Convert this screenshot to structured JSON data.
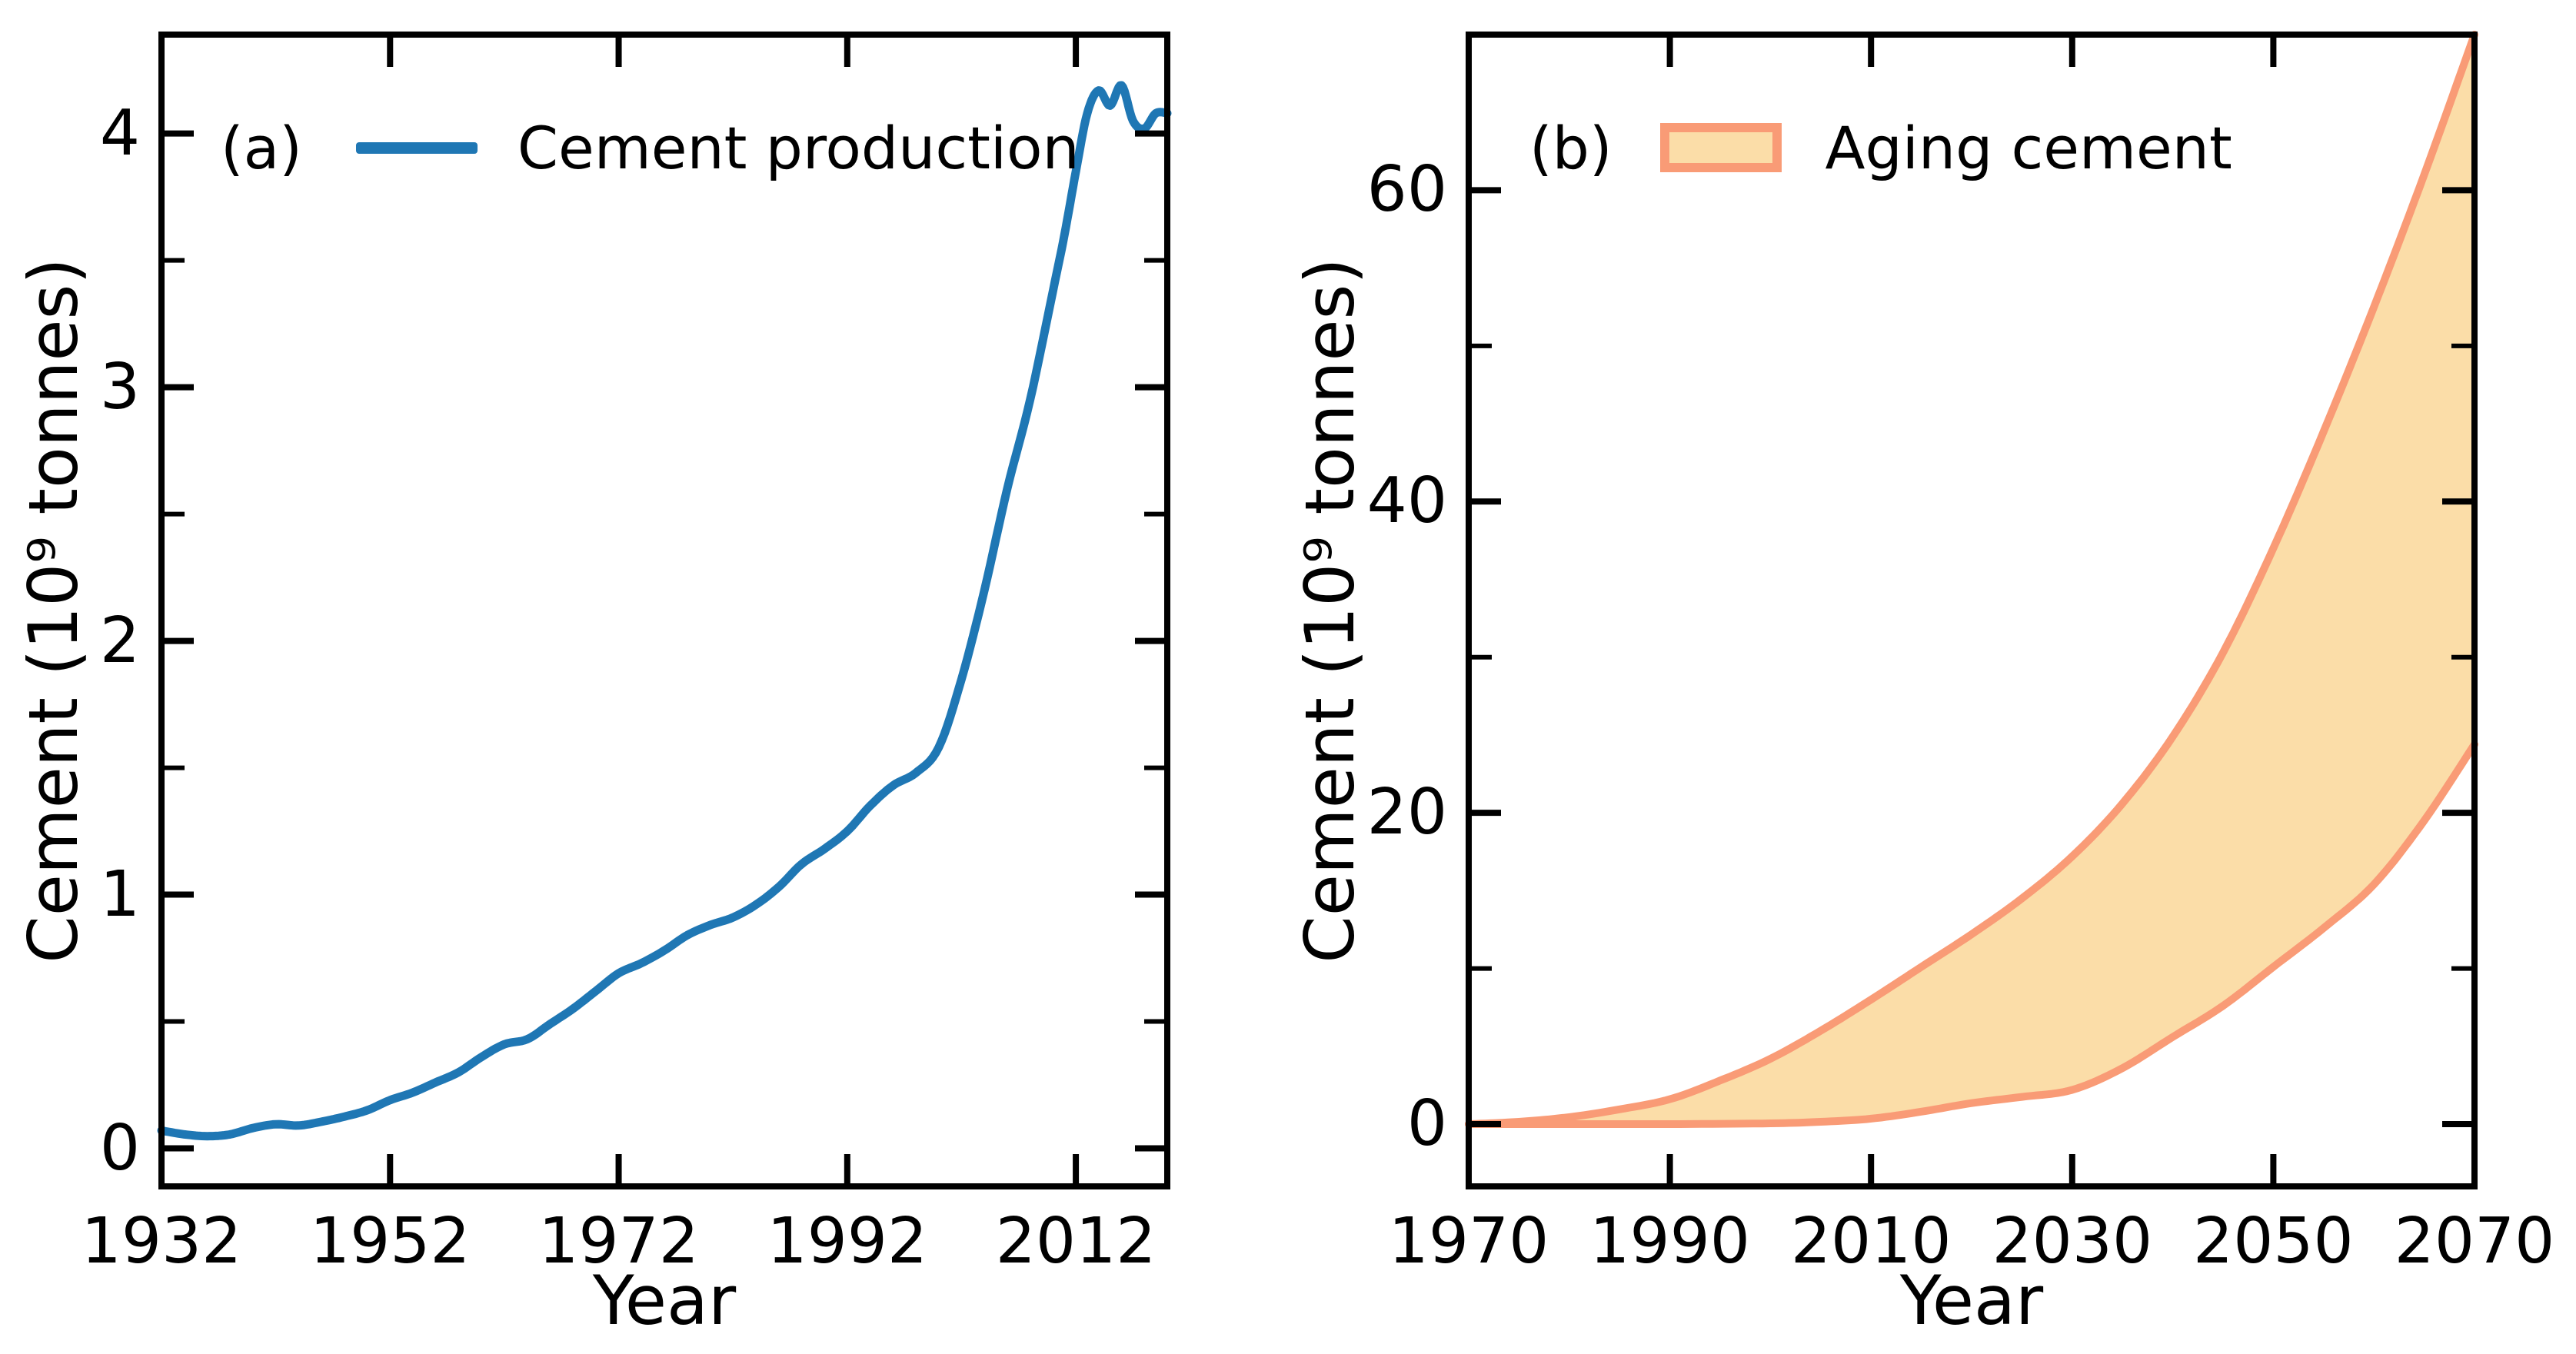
{
  "figure": {
    "background": "#ffffff"
  },
  "colors": {
    "production_line": "#1F77B4",
    "aging_edge": "#F99B76",
    "aging_fill": "#FBDDA8",
    "axis": "#000000",
    "text": "#000000"
  },
  "chart_data": [
    {
      "type": "line",
      "panel": "(a)",
      "xlabel": "Year",
      "ylabel": "Cement (10⁹ tonnes)",
      "xlim": [
        1932,
        2020
      ],
      "ylim": [
        -0.15,
        4.39
      ],
      "xticks": [
        1932,
        1952,
        1972,
        1992,
        2012
      ],
      "yticks": [
        0,
        1,
        2,
        3,
        4
      ],
      "yminor": [
        0.5,
        1.5,
        2.5,
        3.5
      ],
      "grid": false,
      "legend_position": "upper left",
      "series": [
        {
          "name": "Cement production",
          "color": "#1F77B4",
          "points": [
            [
              1932,
              0.07
            ],
            [
              1934,
              0.055
            ],
            [
              1936,
              0.048
            ],
            [
              1938,
              0.055
            ],
            [
              1940,
              0.08
            ],
            [
              1942,
              0.095
            ],
            [
              1944,
              0.09
            ],
            [
              1946,
              0.105
            ],
            [
              1948,
              0.125
            ],
            [
              1950,
              0.15
            ],
            [
              1952,
              0.19
            ],
            [
              1954,
              0.22
            ],
            [
              1956,
              0.26
            ],
            [
              1958,
              0.3
            ],
            [
              1960,
              0.36
            ],
            [
              1962,
              0.41
            ],
            [
              1964,
              0.43
            ],
            [
              1966,
              0.49
            ],
            [
              1968,
              0.55
            ],
            [
              1970,
              0.62
            ],
            [
              1972,
              0.69
            ],
            [
              1974,
              0.73
            ],
            [
              1976,
              0.78
            ],
            [
              1978,
              0.84
            ],
            [
              1980,
              0.88
            ],
            [
              1982,
              0.91
            ],
            [
              1984,
              0.96
            ],
            [
              1986,
              1.03
            ],
            [
              1988,
              1.12
            ],
            [
              1990,
              1.18
            ],
            [
              1992,
              1.25
            ],
            [
              1994,
              1.35
            ],
            [
              1996,
              1.43
            ],
            [
              1998,
              1.48
            ],
            [
              2000,
              1.58
            ],
            [
              2002,
              1.85
            ],
            [
              2004,
              2.2
            ],
            [
              2006,
              2.6
            ],
            [
              2008,
              2.95
            ],
            [
              2010,
              3.38
            ],
            [
              2011,
              3.6
            ],
            [
              2012,
              3.85
            ],
            [
              2013,
              4.08
            ],
            [
              2014,
              4.17
            ],
            [
              2015,
              4.11
            ],
            [
              2016,
              4.19
            ],
            [
              2017,
              4.05
            ],
            [
              2018,
              4.02
            ],
            [
              2019,
              4.08
            ],
            [
              2020,
              4.08
            ]
          ]
        }
      ]
    },
    {
      "type": "area",
      "panel": "(b)",
      "xlabel": "Year",
      "ylabel": "Cement (10⁹ tonnes)",
      "xlim": [
        1970,
        2070
      ],
      "ylim": [
        -4,
        70
      ],
      "xticks": [
        1970,
        1990,
        2010,
        2030,
        2050,
        2070
      ],
      "yticks": [
        0,
        20,
        40,
        60
      ],
      "yminor": [
        10,
        30,
        50
      ],
      "grid": false,
      "legend_position": "upper left",
      "series": [
        {
          "name": "Aging cement",
          "fill": "#FBDDA8",
          "edge": "#F99B76",
          "upper": [
            [
              1970,
              0
            ],
            [
              1975,
              0.15
            ],
            [
              1980,
              0.45
            ],
            [
              1985,
              0.95
            ],
            [
              1990,
              1.6
            ],
            [
              1995,
              2.8
            ],
            [
              2000,
              4.2
            ],
            [
              2005,
              6.0
            ],
            [
              2010,
              8.0
            ],
            [
              2015,
              10.1
            ],
            [
              2020,
              12.2
            ],
            [
              2025,
              14.5
            ],
            [
              2030,
              17.2
            ],
            [
              2035,
              20.6
            ],
            [
              2040,
              24.9
            ],
            [
              2045,
              30.3
            ],
            [
              2050,
              37.0
            ],
            [
              2055,
              44.5
            ],
            [
              2060,
              52.5
            ],
            [
              2065,
              61.0
            ],
            [
              2070,
              70.0
            ]
          ],
          "lower": [
            [
              1970,
              0
            ],
            [
              1980,
              0
            ],
            [
              1990,
              0
            ],
            [
              2000,
              0.05
            ],
            [
              2005,
              0.15
            ],
            [
              2010,
              0.35
            ],
            [
              2015,
              0.8
            ],
            [
              2020,
              1.35
            ],
            [
              2025,
              1.75
            ],
            [
              2030,
              2.2
            ],
            [
              2035,
              3.6
            ],
            [
              2040,
              5.6
            ],
            [
              2045,
              7.6
            ],
            [
              2050,
              10.1
            ],
            [
              2055,
              12.6
            ],
            [
              2060,
              15.4
            ],
            [
              2065,
              19.5
            ],
            [
              2070,
              24.4
            ]
          ]
        }
      ]
    }
  ]
}
